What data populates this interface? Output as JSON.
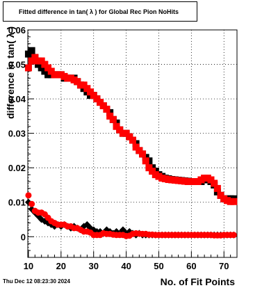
{
  "title": "Fitted difference in tan( λ ) for Global Rec Pion NoHits",
  "footer": {
    "timestamp": "Thu Dec 12 08:23:30 2024"
  },
  "chart_data": {
    "type": "scatter",
    "xlabel": "No. of Fit Points",
    "ylabel": "difference in tan( λ )",
    "xlim": [
      9.8,
      74
    ],
    "ylim": [
      -0.006,
      0.06
    ],
    "x_ticks": [
      "10",
      "20",
      "30",
      "40",
      "50",
      "60",
      "70"
    ],
    "x_tick_values": [
      10,
      20,
      30,
      40,
      50,
      60,
      70
    ],
    "y_ticks": [
      "0",
      "0.01",
      "0.02",
      "0.03",
      "0.04",
      "0.05",
      "0.06"
    ],
    "y_tick_values": [
      0,
      0.01,
      0.02,
      0.03,
      0.04,
      0.05,
      0.06
    ],
    "grid": true,
    "series": [
      {
        "marker": "square",
        "color": "#000000",
        "x": [
          10,
          11,
          12,
          13,
          14,
          15,
          16,
          17,
          18,
          19,
          20,
          21,
          22,
          23,
          24,
          25,
          26,
          27,
          28,
          29,
          30,
          31,
          32,
          33,
          34,
          35,
          36,
          37,
          38,
          39,
          40,
          41,
          42,
          43,
          44,
          45,
          46,
          47,
          48,
          49,
          50,
          51,
          52,
          53,
          54,
          55,
          56,
          57,
          58,
          59,
          60,
          61,
          62,
          63,
          64,
          65,
          66,
          67,
          68,
          69,
          70,
          71,
          72,
          73
        ],
        "values": [
          0.053,
          0.054,
          0.052,
          0.05,
          0.049,
          0.048,
          0.047,
          0.047,
          0.047,
          0.047,
          0.047,
          0.046,
          0.046,
          0.046,
          0.046,
          0.045,
          0.044,
          0.043,
          0.042,
          0.041,
          0.041,
          0.04,
          0.039,
          0.038,
          0.037,
          0.036,
          0.034,
          0.033,
          0.031,
          0.03,
          0.03,
          0.029,
          0.028,
          0.027,
          0.025,
          0.024,
          0.023,
          0.022,
          0.02,
          0.019,
          0.018,
          0.0175,
          0.017,
          0.0168,
          0.0166,
          0.0165,
          0.0164,
          0.0163,
          0.0162,
          0.0161,
          0.016,
          0.016,
          0.016,
          0.016,
          0.0165,
          0.0165,
          0.016,
          0.015,
          0.013,
          0.012,
          0.011,
          0.011,
          0.011,
          0.011
        ]
      },
      {
        "marker": "diamond",
        "color": "#000000",
        "x": [
          10,
          11,
          12,
          13,
          14,
          15,
          16,
          17,
          18,
          19,
          20,
          21,
          22,
          23,
          24,
          25,
          26,
          27,
          28,
          29,
          30,
          31,
          32,
          33,
          34,
          35,
          36,
          37,
          38,
          39,
          40,
          41,
          42,
          43,
          44,
          45,
          46,
          47,
          48,
          49,
          50,
          51,
          52,
          53,
          54,
          55,
          56,
          57,
          58,
          59,
          60,
          61,
          62,
          63,
          64,
          65,
          66,
          67,
          68,
          69,
          70,
          71,
          72,
          73
        ],
        "values": [
          0.01,
          0.008,
          0.007,
          0.006,
          0.005,
          0.0045,
          0.004,
          0.0035,
          0.003,
          0.0035,
          0.003,
          0.0035,
          0.003,
          0.0025,
          0.003,
          0.0025,
          0.002,
          0.003,
          0.0035,
          0.0025,
          0.002,
          0.0015,
          0.0015,
          0.001,
          0.002,
          0.0015,
          0.001,
          0.0015,
          0.001,
          0.002,
          0.001,
          0.0015,
          0.001,
          0.0005,
          0.001,
          0.0005,
          0.0005,
          0.0005,
          0.0005,
          0.0005,
          0.0005,
          0.0005,
          0.0005,
          0.0005,
          0.0005,
          0.0005,
          0.0005,
          0.0005,
          0.0005,
          0.0005,
          0.0005,
          0.0005,
          0.0005,
          0.0005,
          0.0005,
          0.0005,
          0.0005,
          0.0005,
          0.0005,
          0.0005,
          0.0005,
          0.0005,
          0.0005,
          0.0005
        ]
      },
      {
        "marker": "square",
        "color": "#ff0000",
        "x": [
          10,
          11,
          12,
          13,
          14,
          15,
          16,
          17,
          18,
          19,
          20,
          21,
          22,
          23,
          24,
          25,
          26,
          27,
          28,
          29,
          30,
          31,
          32,
          33,
          34,
          35,
          36,
          37,
          38,
          39,
          40,
          41,
          42,
          43,
          44,
          45,
          46,
          47,
          48,
          49,
          50,
          51,
          52,
          53,
          54,
          55,
          56,
          57,
          58,
          59,
          60,
          61,
          62,
          63,
          64,
          65,
          66,
          67,
          68,
          69,
          70,
          71,
          72,
          73
        ],
        "values": [
          0.049,
          0.051,
          0.052,
          0.051,
          0.051,
          0.05,
          0.049,
          0.048,
          0.047,
          0.047,
          0.047,
          0.0465,
          0.046,
          0.046,
          0.0455,
          0.045,
          0.044,
          0.044,
          0.043,
          0.042,
          0.041,
          0.04,
          0.039,
          0.038,
          0.037,
          0.035,
          0.034,
          0.032,
          0.031,
          0.03,
          0.03,
          0.029,
          0.028,
          0.026,
          0.025,
          0.024,
          0.022,
          0.02,
          0.019,
          0.018,
          0.0175,
          0.017,
          0.0168,
          0.0166,
          0.0165,
          0.0164,
          0.0163,
          0.0162,
          0.0161,
          0.016,
          0.016,
          0.016,
          0.016,
          0.0165,
          0.017,
          0.017,
          0.0165,
          0.0155,
          0.014,
          0.012,
          0.011,
          0.0105,
          0.0102,
          0.0102
        ]
      },
      {
        "marker": "circle",
        "color": "#ff0000",
        "x": [
          10,
          11,
          12,
          13,
          14,
          15,
          16,
          17,
          18,
          19,
          20,
          21,
          22,
          23,
          24,
          25,
          26,
          27,
          28,
          29,
          30,
          31,
          32,
          33,
          34,
          35,
          36,
          37,
          38,
          39,
          40,
          41,
          42,
          43,
          44,
          45,
          46,
          47,
          48,
          49,
          50,
          51,
          52,
          53,
          54,
          55,
          56,
          57,
          58,
          59,
          60,
          61,
          62,
          63,
          64,
          65,
          66,
          67,
          68,
          69,
          70,
          71,
          72,
          73
        ],
        "values": [
          0.012,
          0.0095,
          0.0075,
          0.007,
          0.007,
          0.0065,
          0.0055,
          0.0045,
          0.004,
          0.0035,
          0.0035,
          0.0035,
          0.003,
          0.003,
          0.0025,
          0.0025,
          0.002,
          0.0015,
          0.0015,
          0.0012,
          0.0005,
          0.0005,
          0.0005,
          0.001,
          0.0008,
          0.0008,
          0.0006,
          0.0005,
          0.0005,
          0.0005,
          0.0002,
          0.0003,
          0.0008,
          0.001,
          0.0009,
          0.0008,
          0.0008,
          0.0006,
          0.0006,
          0.0005,
          0.0005,
          0.0005,
          0.0005,
          0.0005,
          0.0005,
          0.0005,
          0.0005,
          0.0005,
          0.0005,
          0.0005,
          0.0005,
          0.0005,
          0.0005,
          0.0005,
          0.0005,
          0.0005,
          0.0005,
          0.0004,
          0.0004,
          0.0004,
          0.0005,
          0.0005,
          0.0005,
          0.0005
        ]
      }
    ]
  }
}
